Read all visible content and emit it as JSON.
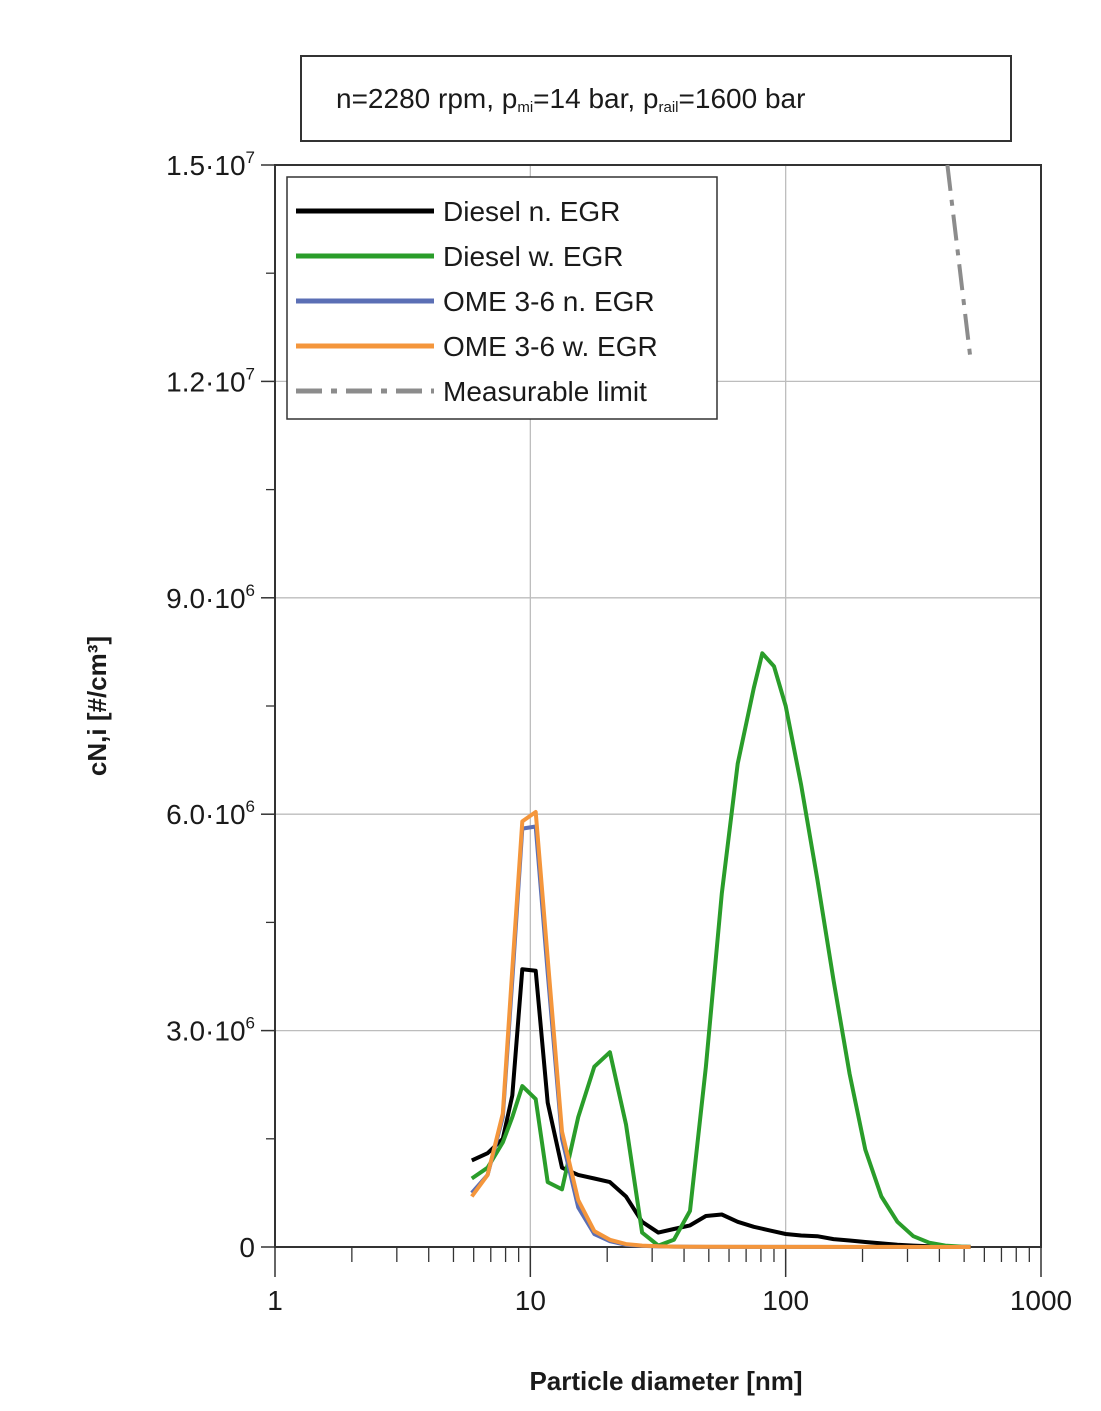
{
  "chart_data": {
    "type": "line",
    "title_parts": {
      "p1": "n=2280 rpm, p",
      "sub1": "mi",
      "p2": "=14 bar, p",
      "sub2": "rail",
      "p3": "=1600 bar"
    },
    "xlabel": "Particle diameter [nm]",
    "ylabel": "cN,i [#/cm³]",
    "x_scale": "log",
    "xlim": [
      1,
      1000
    ],
    "ylim": [
      0,
      15000000
    ],
    "grid": true,
    "legend_position": "top-left",
    "x_ticks": [
      {
        "value": 1,
        "label": "1"
      },
      {
        "value": 10,
        "label": "10"
      },
      {
        "value": 100,
        "label": "100"
      },
      {
        "value": 1000,
        "label": "1000"
      }
    ],
    "y_ticks": [
      {
        "value": 0,
        "mant": "0",
        "exp": ""
      },
      {
        "value": 3000000,
        "mant": "3.0·10",
        "exp": "6"
      },
      {
        "value": 6000000,
        "mant": "6.0·10",
        "exp": "6"
      },
      {
        "value": 9000000,
        "mant": "9.0·10",
        "exp": "6"
      },
      {
        "value": 12000000,
        "mant": "1.2·10",
        "exp": "7"
      },
      {
        "value": 15000000,
        "mant": "1.5·10",
        "exp": "7"
      }
    ],
    "series": [
      {
        "name": "Diesel n. EGR",
        "color": "#000000",
        "dash": "",
        "points": [
          [
            5.9,
            1200000
          ],
          [
            6.8,
            1300000
          ],
          [
            7.8,
            1500000
          ],
          [
            8.5,
            2100000
          ],
          [
            9.3,
            3850000
          ],
          [
            10.5,
            3830000
          ],
          [
            11.7,
            2000000
          ],
          [
            13.3,
            1100000
          ],
          [
            15.4,
            1000000
          ],
          [
            17.8,
            950000
          ],
          [
            20.5,
            900000
          ],
          [
            23.7,
            700000
          ],
          [
            27.4,
            350000
          ],
          [
            31.7,
            200000
          ],
          [
            36.5,
            250000
          ],
          [
            42.2,
            300000
          ],
          [
            48.7,
            430000
          ],
          [
            56.2,
            450000
          ],
          [
            64.9,
            350000
          ],
          [
            75,
            280000
          ],
          [
            86.6,
            230000
          ],
          [
            100,
            180000
          ],
          [
            115,
            160000
          ],
          [
            133,
            150000
          ],
          [
            154,
            110000
          ],
          [
            178,
            90000
          ],
          [
            205,
            70000
          ],
          [
            237,
            50000
          ],
          [
            274,
            30000
          ],
          [
            316,
            20000
          ],
          [
            365,
            10000
          ],
          [
            422,
            5000
          ],
          [
            487,
            2000
          ],
          [
            530,
            1000
          ]
        ]
      },
      {
        "name": "Diesel w. EGR",
        "color": "#2a9d2a",
        "dash": "",
        "points": [
          [
            5.9,
            950000
          ],
          [
            6.8,
            1100000
          ],
          [
            7.8,
            1450000
          ],
          [
            8.5,
            1800000
          ],
          [
            9.3,
            2230000
          ],
          [
            10.5,
            2050000
          ],
          [
            11.7,
            900000
          ],
          [
            13.3,
            800000
          ],
          [
            15.4,
            1800000
          ],
          [
            17.8,
            2500000
          ],
          [
            20.5,
            2700000
          ],
          [
            23.7,
            1700000
          ],
          [
            27.4,
            200000
          ],
          [
            31.7,
            20000
          ],
          [
            36.5,
            100000
          ],
          [
            42.2,
            500000
          ],
          [
            48.7,
            2500000
          ],
          [
            56.2,
            4900000
          ],
          [
            64.9,
            6700000
          ],
          [
            75,
            7750000
          ],
          [
            81,
            8230000
          ],
          [
            90,
            8050000
          ],
          [
            100,
            7500000
          ],
          [
            115,
            6400000
          ],
          [
            133,
            5100000
          ],
          [
            154,
            3700000
          ],
          [
            178,
            2400000
          ],
          [
            205,
            1350000
          ],
          [
            237,
            700000
          ],
          [
            274,
            350000
          ],
          [
            316,
            150000
          ],
          [
            365,
            60000
          ],
          [
            422,
            20000
          ],
          [
            487,
            5000
          ],
          [
            530,
            2000
          ]
        ]
      },
      {
        "name": "OME 3-6 n. EGR",
        "color": "#5b6fb5",
        "dash": "",
        "points": [
          [
            5.9,
            750000
          ],
          [
            6.8,
            1000000
          ],
          [
            7.8,
            1800000
          ],
          [
            8.5,
            3700000
          ],
          [
            9.3,
            5800000
          ],
          [
            10.5,
            5830000
          ],
          [
            11.7,
            3800000
          ],
          [
            13.3,
            1500000
          ],
          [
            15.4,
            550000
          ],
          [
            17.8,
            180000
          ],
          [
            20.5,
            80000
          ],
          [
            23.7,
            30000
          ],
          [
            27.4,
            15000
          ],
          [
            31.7,
            8000
          ],
          [
            36.5,
            5000
          ],
          [
            42.2,
            3000
          ],
          [
            48.7,
            2000
          ],
          [
            100,
            1000
          ],
          [
            200,
            500
          ],
          [
            530,
            200
          ]
        ]
      },
      {
        "name": "OME 3-6 w. EGR",
        "color": "#f4963c",
        "dash": "",
        "points": [
          [
            5.9,
            700000
          ],
          [
            6.8,
            1000000
          ],
          [
            7.8,
            1850000
          ],
          [
            8.5,
            3850000
          ],
          [
            9.3,
            5900000
          ],
          [
            10.5,
            6030000
          ],
          [
            11.7,
            4000000
          ],
          [
            13.3,
            1600000
          ],
          [
            15.4,
            650000
          ],
          [
            17.8,
            220000
          ],
          [
            20.5,
            100000
          ],
          [
            23.7,
            40000
          ],
          [
            27.4,
            20000
          ],
          [
            31.7,
            10000
          ],
          [
            36.5,
            6000
          ],
          [
            42.2,
            4000
          ],
          [
            48.7,
            3000
          ],
          [
            100,
            1500
          ],
          [
            200,
            800
          ],
          [
            530,
            300
          ]
        ]
      },
      {
        "name": "Measurable limit",
        "color": "#8c8c8c",
        "dash": "26 9 6 9",
        "points": [
          [
            430,
            15000000
          ],
          [
            530,
            12300000
          ]
        ]
      }
    ]
  }
}
